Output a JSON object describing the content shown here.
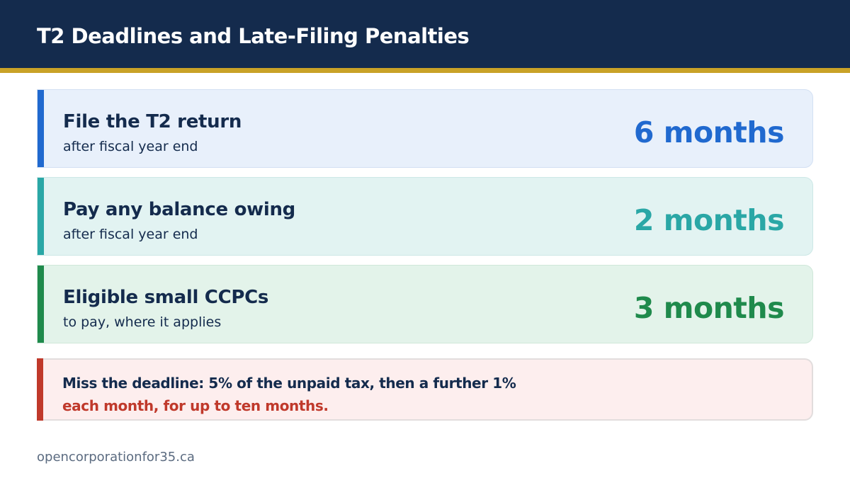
{
  "header": {
    "title": "T2 Deadlines and Late-Filing Penalties",
    "background_color": "#142b4d",
    "accent_color": "#c9a227"
  },
  "deadlines": [
    {
      "label": "File the T2 return",
      "sub": "after fiscal year end",
      "value": "6 months",
      "color": "#2069cf"
    },
    {
      "label": "Pay any balance owing",
      "sub": "after fiscal year end",
      "value": "2 months",
      "color": "#2aa7a6"
    },
    {
      "label": "Eligible small CCPCs",
      "sub": "to pay, where it applies",
      "value": "3 months",
      "color": "#1f8a4c"
    }
  ],
  "penalty": {
    "line1": "Miss the deadline: 5% of the unpaid tax, then a further 1%",
    "line2": "each month, for up to ten months.",
    "color": "#c0392b"
  },
  "footer": {
    "site": "opencorporationfor35.ca"
  }
}
